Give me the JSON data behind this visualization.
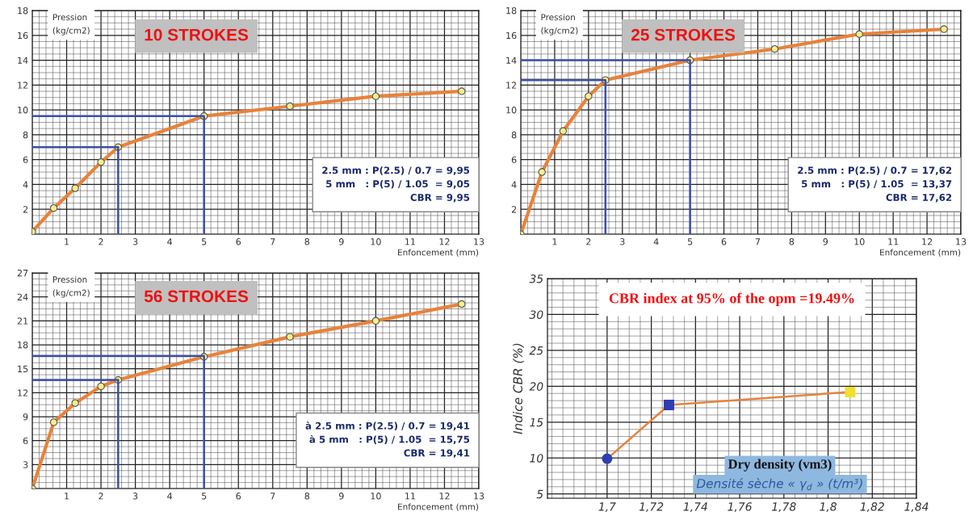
{
  "chart_data": [
    {
      "type": "line",
      "title": "10 STROKES",
      "ylabel": "Pression\n(kg/cm2)",
      "xlabel": "Enfoncement (mm)",
      "xlim": [
        0,
        13
      ],
      "ylim": [
        0,
        18
      ],
      "xticks": [
        1,
        2,
        3,
        4,
        5,
        6,
        7,
        8,
        9,
        10,
        11,
        12,
        13
      ],
      "yticks": [
        2,
        4,
        6,
        8,
        10,
        12,
        14,
        16,
        18
      ],
      "grid": true,
      "annotations": [
        "2.5 mm : P(2.5) / 0.7 = 9,95",
        "5 mm   : P(5) / 1.05  = 9,05",
        "CBR = 9,95"
      ],
      "series": [
        {
          "color": "#e8823a",
          "marker": "circle",
          "x": [
            0,
            0.625,
            1.25,
            2,
            2.5,
            5,
            7.5,
            10,
            12.5
          ],
          "values": [
            0.2,
            2.1,
            3.7,
            5.8,
            7.0,
            9.5,
            10.3,
            11.1,
            11.5
          ]
        },
        {
          "color": "#3b4fa8",
          "marker": "none",
          "x": [
            0,
            2.5,
            2.5
          ],
          "values": [
            7.0,
            7.0,
            0
          ]
        },
        {
          "color": "#3b4fa8",
          "marker": "none",
          "x": [
            0,
            5,
            5
          ],
          "values": [
            9.5,
            9.5,
            0
          ]
        }
      ]
    },
    {
      "type": "line",
      "title": "25 STROKES",
      "ylabel": "Pression\n(kg/cm2)",
      "xlabel": "Enfoncement (mm)",
      "xlim": [
        0,
        13
      ],
      "ylim": [
        0,
        18
      ],
      "xticks": [
        1,
        2,
        3,
        4,
        5,
        6,
        7,
        8,
        9,
        10,
        11,
        12,
        13
      ],
      "yticks": [
        2,
        4,
        6,
        8,
        10,
        12,
        14,
        16,
        18
      ],
      "grid": true,
      "annotations": [
        "2.5 mm : P(2.5) / 0.7 = 17,62",
        "5 mm   : P(5) / 1.05  = 13,37",
        "CBR = 17,62"
      ],
      "series": [
        {
          "color": "#e8823a",
          "marker": "circle",
          "x": [
            0,
            0.625,
            1.25,
            2,
            2.5,
            5,
            7.5,
            10,
            12.5
          ],
          "values": [
            0,
            5.0,
            8.3,
            11.1,
            12.4,
            14.0,
            14.9,
            16.1,
            16.5
          ]
        },
        {
          "color": "#3b4fa8",
          "marker": "none",
          "x": [
            0,
            2.5,
            2.5
          ],
          "values": [
            12.4,
            12.4,
            0
          ]
        },
        {
          "color": "#3b4fa8",
          "marker": "none",
          "x": [
            0,
            5,
            5
          ],
          "values": [
            14.0,
            14.0,
            0
          ]
        }
      ]
    },
    {
      "type": "line",
      "title": "56 STROKES",
      "ylabel": "Pression\n(kg/cm2)",
      "xlabel": "Enfoncement (mm)",
      "xlim": [
        0,
        13
      ],
      "ylim": [
        0,
        27
      ],
      "xticks": [
        1,
        2,
        3,
        4,
        5,
        6,
        7,
        8,
        9,
        10,
        11,
        12,
        13
      ],
      "yticks": [
        3,
        6,
        9,
        12,
        15,
        18,
        21,
        24,
        27
      ],
      "grid": true,
      "annotations": [
        "à 2.5 mm : P(2.5) / 0.7 = 19,41",
        "à 5 mm   : P(5) / 1.05  = 15,75",
        "CBR = 19,41"
      ],
      "series": [
        {
          "color": "#e8823a",
          "marker": "circle",
          "x": [
            0,
            0.625,
            1.25,
            2,
            2.5,
            5,
            7.5,
            10,
            12.5
          ],
          "values": [
            0,
            8.3,
            10.7,
            12.8,
            13.6,
            16.5,
            19.0,
            21.0,
            23.1
          ]
        },
        {
          "color": "#3b4fa8",
          "marker": "none",
          "x": [
            0,
            2.5,
            2.5
          ],
          "values": [
            13.6,
            13.6,
            0
          ]
        },
        {
          "color": "#3b4fa8",
          "marker": "none",
          "x": [
            0,
            5,
            5
          ],
          "values": [
            16.6,
            16.6,
            0
          ]
        }
      ]
    },
    {
      "type": "line",
      "title": "CBR index at 95% of the opm =19.49%",
      "ylabel": "Indice CBR (%)",
      "xlabel": "Densité sèche « γ$_{d}$ » (t/m³)",
      "xlim": [
        1.673,
        1.84
      ],
      "ylim": [
        4.4,
        35
      ],
      "xticks": [
        {
          "value": 1.7,
          "label": "1,7"
        },
        {
          "value": 1.72,
          "label": "1,72"
        },
        {
          "value": 1.74,
          "label": "1,74"
        },
        {
          "value": 1.76,
          "label": "1,76"
        },
        {
          "value": 1.78,
          "label": "1,78"
        },
        {
          "value": 1.8,
          "label": "1,8"
        },
        {
          "value": 1.82,
          "label": "1,82"
        },
        {
          "value": 1.84,
          "label": "1,84"
        }
      ],
      "yticks": [
        5,
        10,
        15,
        20,
        25,
        30,
        35
      ],
      "grid": true,
      "annotations": [
        "Dry density (vm3)"
      ],
      "series": [
        {
          "color": "#e8823a",
          "marker": "none",
          "x": [
            1.7,
            1.728,
            1.81
          ],
          "values": [
            9.9,
            17.4,
            19.2
          ]
        },
        {
          "type": "scatter",
          "color": "#2f3fb0",
          "marker": "circle",
          "x": [
            1.7
          ],
          "values": [
            9.9
          ]
        },
        {
          "type": "scatter",
          "color": "#2f3fb0",
          "marker": "square",
          "x": [
            1.728
          ],
          "values": [
            17.4
          ]
        },
        {
          "type": "scatter",
          "color": "#f2e030",
          "marker": "square",
          "x": [
            1.81
          ],
          "values": [
            19.2
          ]
        }
      ]
    }
  ]
}
